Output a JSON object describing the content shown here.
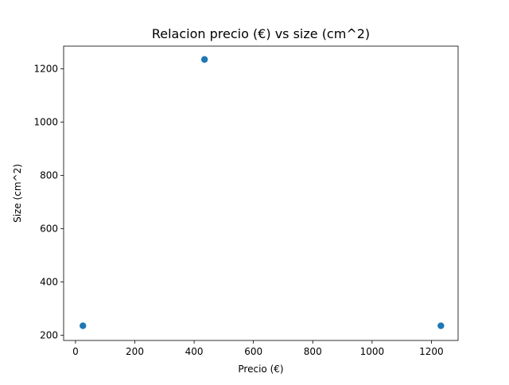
{
  "chart_data": {
    "type": "scatter",
    "title": "Relacion precio (€) vs size (cm^2)",
    "xlabel": "Precio (€)",
    "ylabel": "Size (cm^2)",
    "xlim": [
      -40,
      1290
    ],
    "ylim": [
      180,
      1285
    ],
    "xticks": [
      0,
      200,
      400,
      600,
      800,
      1000,
      1200
    ],
    "yticks": [
      200,
      400,
      600,
      800,
      1000,
      1200
    ],
    "grid": false,
    "marker_color": "#1f77b4",
    "points": [
      {
        "x": 25,
        "y": 235
      },
      {
        "x": 435,
        "y": 1235
      },
      {
        "x": 1232,
        "y": 235
      }
    ]
  }
}
